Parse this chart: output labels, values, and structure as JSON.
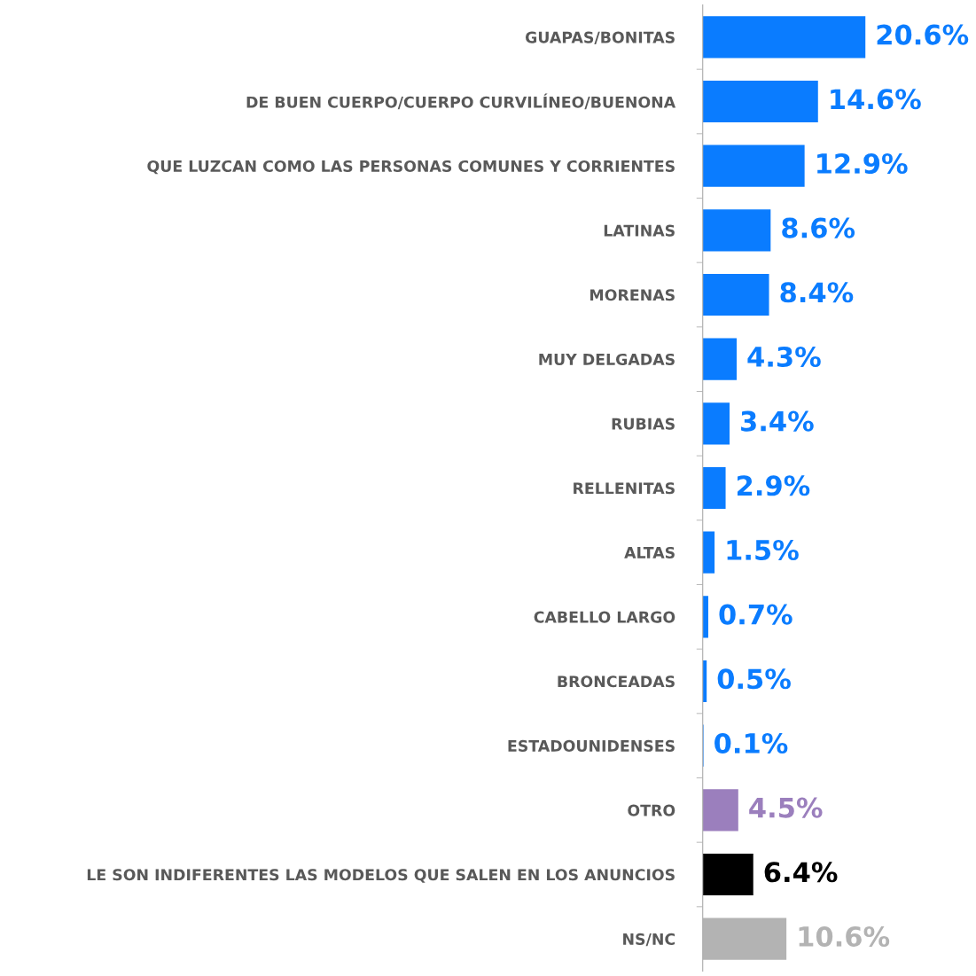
{
  "chart_data": {
    "type": "bar",
    "orientation": "horizontal",
    "categories": [
      "GUAPAS/BONITAS",
      "DE BUEN CUERPO/CUERPO CURVILÍNEO/BUENONA",
      "QUE LUZCAN COMO LAS PERSONAS COMUNES Y CORRIENTES",
      "LATINAS",
      "MORENAS",
      "MUY DELGADAS",
      "RUBIAS",
      "RELLENITAS",
      "ALTAS",
      "CABELLO LARGO",
      "BRONCEADAS",
      "ESTADOUNIDENSES",
      "OTRO",
      "LE SON INDIFERENTES LAS MODELOS QUE SALEN EN LOS ANUNCIOS",
      "NS/NC"
    ],
    "values": [
      20.6,
      14.6,
      12.9,
      8.6,
      8.4,
      4.3,
      3.4,
      2.9,
      1.5,
      0.7,
      0.5,
      0.1,
      4.5,
      6.4,
      10.6
    ],
    "value_labels": [
      "20.6%",
      "14.6%",
      "12.9%",
      "8.6%",
      "8.4%",
      "4.3%",
      "3.4%",
      "2.9%",
      "1.5%",
      "0.7%",
      "0.5%",
      "0.1%",
      "4.5%",
      "6.4%",
      "10.6%"
    ],
    "colors": [
      "#0a7cff",
      "#0a7cff",
      "#0a7cff",
      "#0a7cff",
      "#0a7cff",
      "#0a7cff",
      "#0a7cff",
      "#0a7cff",
      "#0a7cff",
      "#0a7cff",
      "#0a7cff",
      "#0a7cff",
      "#9b7fbd",
      "#000000",
      "#b3b3b3"
    ],
    "tick_labels": "y",
    "grid": false
  }
}
